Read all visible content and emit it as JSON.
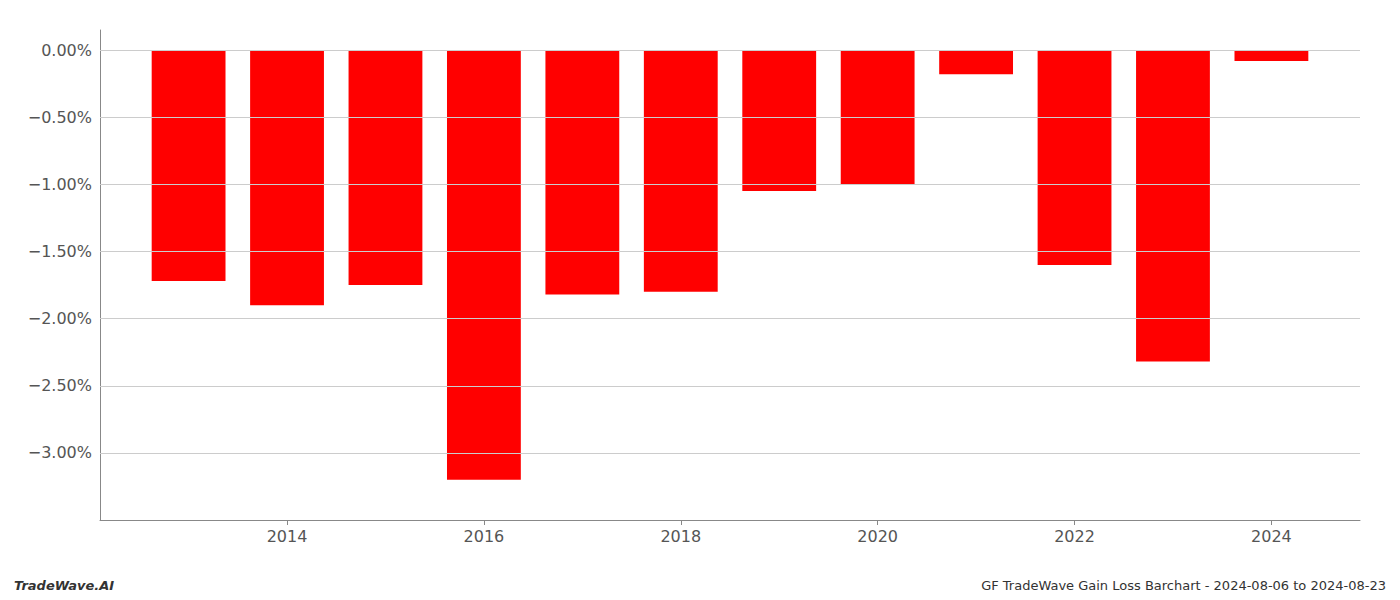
{
  "chart_data": {
    "type": "bar",
    "x": [
      2013,
      2014,
      2015,
      2016,
      2017,
      2018,
      2019,
      2020,
      2021,
      2022,
      2023,
      2024
    ],
    "values": [
      -1.72,
      -1.9,
      -1.75,
      -3.2,
      -1.82,
      -1.8,
      -1.05,
      -1.0,
      -0.18,
      -1.6,
      -2.32,
      -0.08
    ],
    "color": "#ff0000",
    "xlim": [
      2012.1,
      2024.9
    ],
    "xticks": [
      2014,
      2016,
      2018,
      2020,
      2022,
      2024
    ],
    "ylim": [
      -3.5,
      0.15
    ],
    "yticks": [
      {
        "value": 0.0,
        "label": "0.00%"
      },
      {
        "value": -0.5,
        "label": "−0.50%"
      },
      {
        "value": -1.0,
        "label": "−1.00%"
      },
      {
        "value": -1.5,
        "label": "−1.50%"
      },
      {
        "value": -2.0,
        "label": "−2.00%"
      },
      {
        "value": -2.5,
        "label": "−2.50%"
      },
      {
        "value": -3.0,
        "label": "−3.00%"
      }
    ],
    "grid": true,
    "annotations": [
      "TradeWave.AI",
      "GF TradeWave Gain Loss Barchart - 2024-08-06 to 2024-08-23"
    ]
  }
}
